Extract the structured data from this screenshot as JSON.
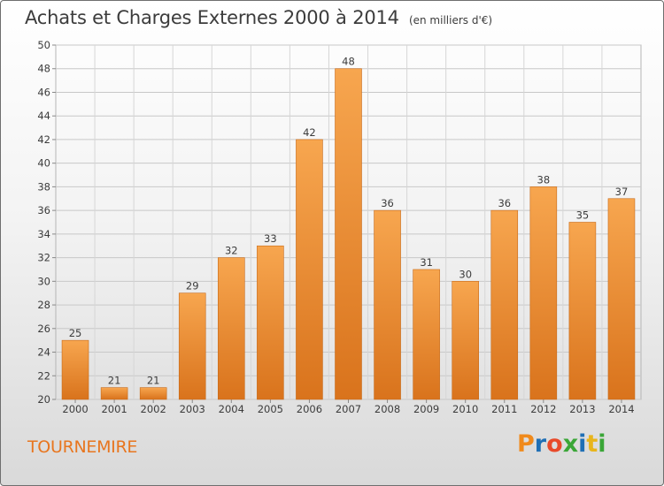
{
  "header": {
    "title": "Achats et Charges Externes 2000 à 2014",
    "unit": "(en milliers d'€)"
  },
  "footer": {
    "commune": "TOURNEMIRE",
    "brand": "Proxiti",
    "brand_colors": [
      "#f08a1c",
      "#1f6fb5",
      "#e84a2a",
      "#3aa637",
      "#1f6fb5",
      "#e8b51c",
      "#3aa637"
    ]
  },
  "chart_data": {
    "type": "bar",
    "categories": [
      "2000",
      "2001",
      "2002",
      "2003",
      "2004",
      "2005",
      "2006",
      "2007",
      "2008",
      "2009",
      "2010",
      "2011",
      "2012",
      "2013",
      "2014"
    ],
    "values": [
      25,
      21,
      21,
      29,
      32,
      33,
      42,
      48,
      36,
      31,
      30,
      36,
      38,
      35,
      37
    ],
    "title": "Achats et Charges Externes 2000 à 2014",
    "ylabel": "",
    "xlabel": "",
    "ylim": [
      20,
      50
    ],
    "yticks": [
      20,
      22,
      24,
      26,
      28,
      30,
      32,
      34,
      36,
      38,
      40,
      42,
      44,
      46,
      48,
      50
    ],
    "grid": true,
    "bar_color": "#f0923a"
  }
}
